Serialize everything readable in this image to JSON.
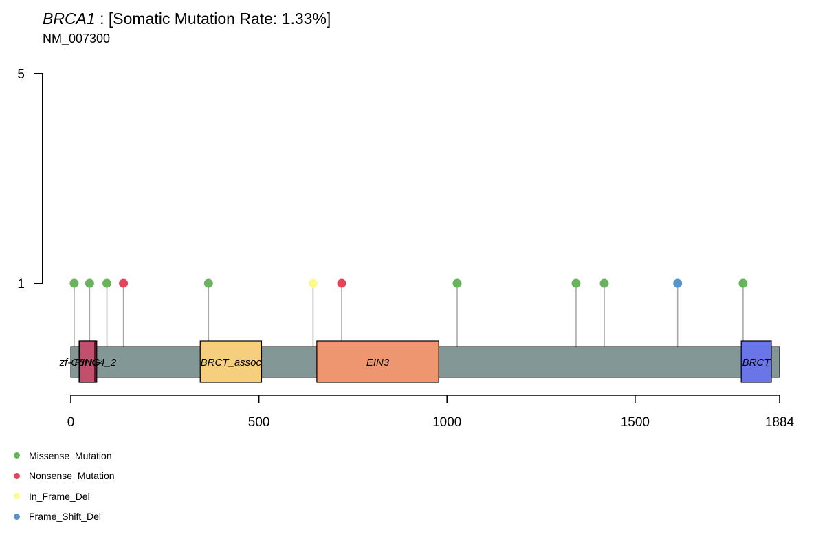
{
  "title": {
    "gene": "BRCA1",
    "rest": " : [Somatic Mutation Rate: 1.33%]"
  },
  "subtitle": "NM_007300",
  "chart_data": {
    "type": "lollipop",
    "protein_length": 1884,
    "x_ticks": [
      0,
      500,
      1000,
      1500,
      1884
    ],
    "y_ticks": [
      1,
      5
    ],
    "ylim": [
      0,
      5
    ],
    "domains": [
      {
        "name": "zf-C3HC4_2",
        "start": 22,
        "end": 69,
        "color": "#c0506e"
      },
      {
        "name": "RING",
        "start": 24,
        "end": 64,
        "color": "#c0506e"
      },
      {
        "name": "BRCT_assoc",
        "start": 344,
        "end": 507,
        "color": "#f5cf7d"
      },
      {
        "name": "EIN3",
        "start": 654,
        "end": 978,
        "color": "#ee9670"
      },
      {
        "name": "BRCT",
        "start": 1782,
        "end": 1862,
        "color": "#6a76e8"
      }
    ],
    "mutations": [
      {
        "pos": 9,
        "count": 1,
        "type": "Missense_Mutation"
      },
      {
        "pos": 50,
        "count": 1,
        "type": "Missense_Mutation"
      },
      {
        "pos": 96,
        "count": 1,
        "type": "Missense_Mutation"
      },
      {
        "pos": 140,
        "count": 1,
        "type": "Nonsense_Mutation"
      },
      {
        "pos": 366,
        "count": 1,
        "type": "Missense_Mutation"
      },
      {
        "pos": 644,
        "count": 1,
        "type": "In_Frame_Del"
      },
      {
        "pos": 720,
        "count": 1,
        "type": "Nonsense_Mutation"
      },
      {
        "pos": 1027,
        "count": 1,
        "type": "Missense_Mutation"
      },
      {
        "pos": 1343,
        "count": 1,
        "type": "Missense_Mutation"
      },
      {
        "pos": 1418,
        "count": 1,
        "type": "Missense_Mutation"
      },
      {
        "pos": 1613,
        "count": 1,
        "type": "Frame_Shift_Del"
      },
      {
        "pos": 1787,
        "count": 1,
        "type": "Missense_Mutation"
      }
    ],
    "legend": [
      {
        "label": "Missense_Mutation",
        "color": "#6ab25e"
      },
      {
        "label": "Nonsense_Mutation",
        "color": "#e3465a"
      },
      {
        "label": "In_Frame_Del",
        "color": "#fdf98f"
      },
      {
        "label": "Frame_Shift_Del",
        "color": "#5b92c8"
      }
    ],
    "protein_color": "#839796",
    "stem_color": "#a9a9a9"
  }
}
